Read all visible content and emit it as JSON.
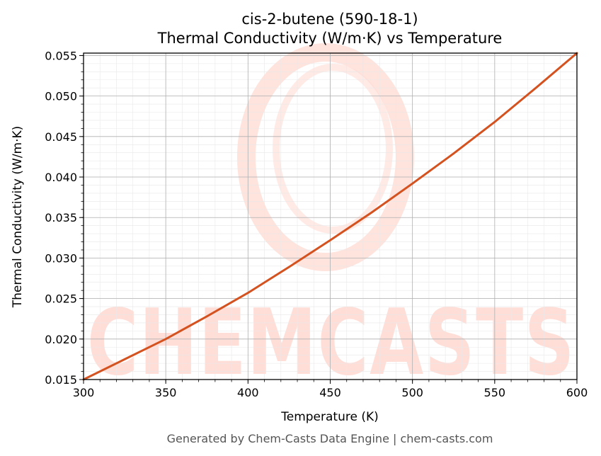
{
  "chart_data": {
    "type": "line",
    "title": "cis-2-butene (590-18-1)",
    "subtitle": "Thermal Conductivity (W/m·K) vs Temperature",
    "xlabel": "Temperature (K)",
    "ylabel": "Thermal Conductivity (W/m·K)",
    "xlim": [
      300,
      600
    ],
    "ylim": [
      0.015,
      0.0553
    ],
    "x_ticks": [
      300,
      350,
      400,
      450,
      500,
      550,
      600
    ],
    "x_tick_labels": [
      "300",
      "350",
      "400",
      "450",
      "500",
      "550",
      "600"
    ],
    "y_ticks": [
      0.015,
      0.02,
      0.025,
      0.03,
      0.035,
      0.04,
      0.045,
      0.05,
      0.055
    ],
    "y_tick_labels": [
      "0.015",
      "0.020",
      "0.025",
      "0.030",
      "0.035",
      "0.040",
      "0.045",
      "0.050",
      "0.055"
    ],
    "grid": true,
    "series": [
      {
        "color": "#d4521f",
        "x": [
          300,
          325,
          350,
          375,
          400,
          425,
          450,
          475,
          500,
          525,
          550,
          575,
          600
        ],
        "y": [
          0.015,
          0.0175,
          0.02,
          0.0228,
          0.0257,
          0.0289,
          0.0322,
          0.0356,
          0.0392,
          0.0429,
          0.0468,
          0.051,
          0.0553
        ]
      }
    ]
  },
  "watermark": {
    "text": "CHEMCASTS",
    "color": "#ffd9d2"
  },
  "footer": {
    "text": "Generated by Chem-Casts Data Engine | chem-casts.com"
  }
}
